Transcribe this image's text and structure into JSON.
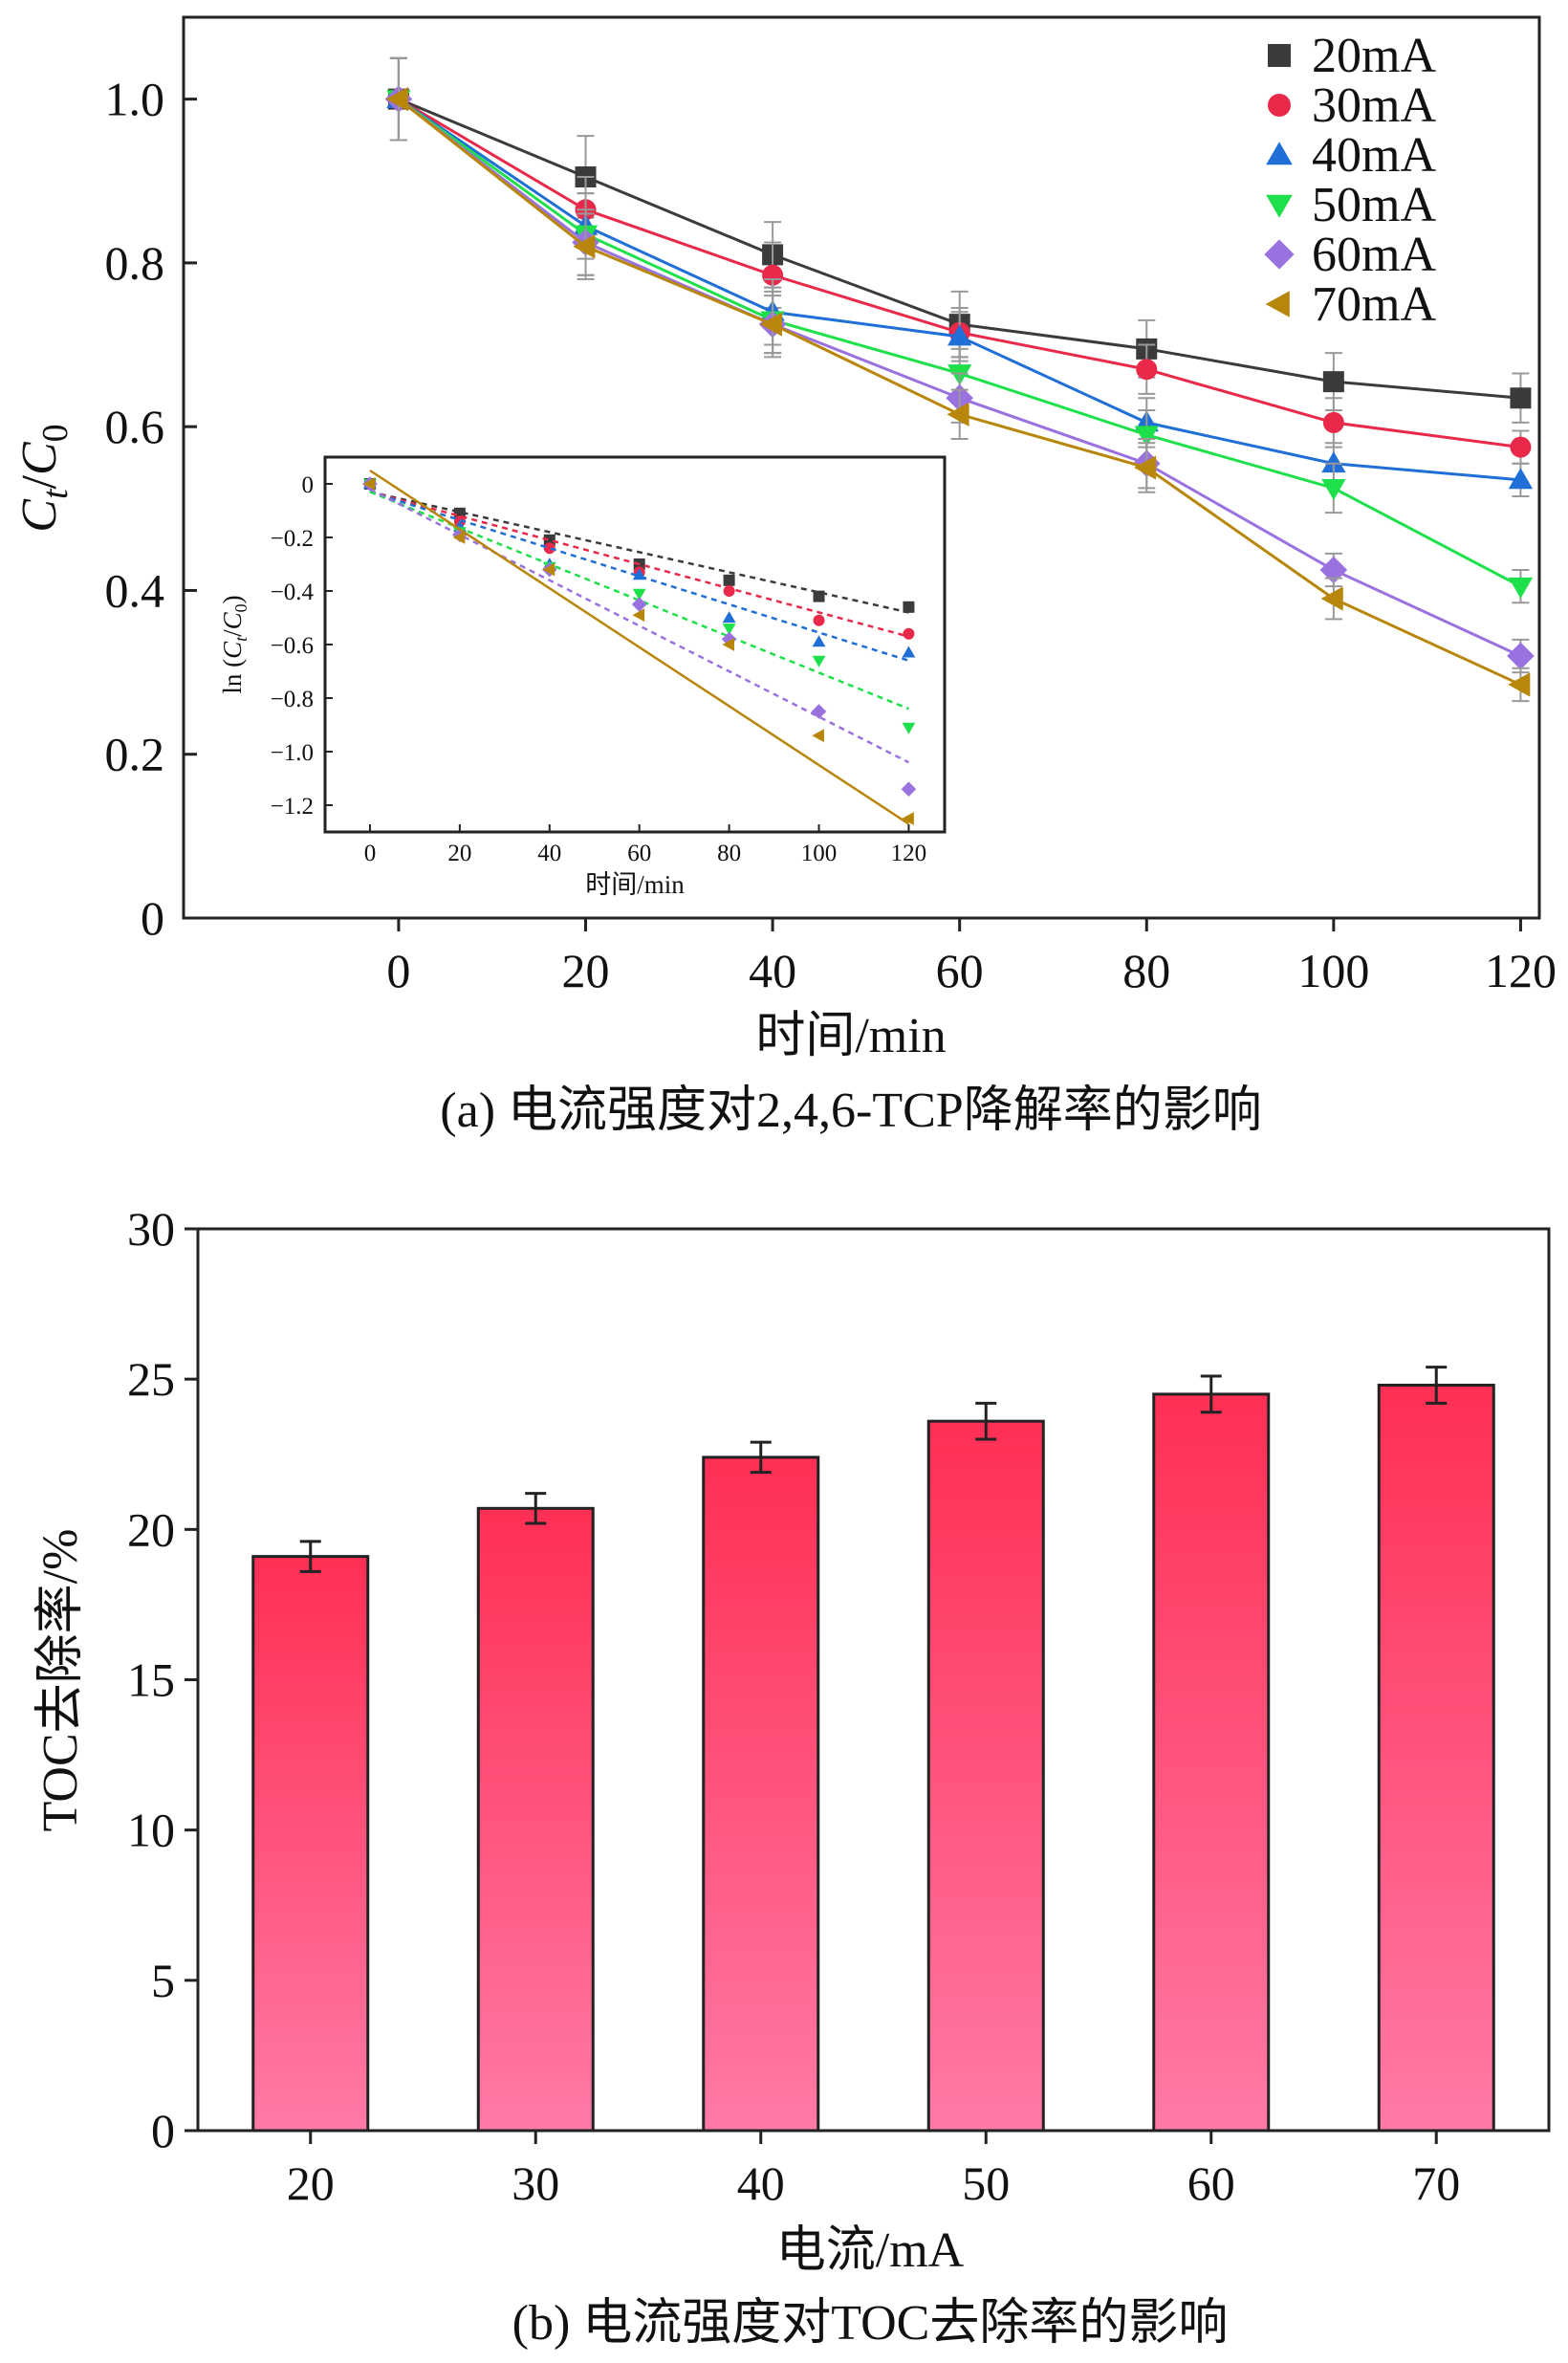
{
  "chart_data": [
    {
      "id": "a",
      "type": "line",
      "caption": "(a) 电流强度对2,4,6-TCP降解率的影响",
      "xlabel": "时间/min",
      "ylabel_main": "C",
      "ylabel_sub1": "t",
      "ylabel_slash": "/",
      "ylabel_sub2": "0",
      "xlim": [
        -23,
        122
      ],
      "ylim": [
        0,
        1.1
      ],
      "x_ticks": [
        0,
        20,
        40,
        60,
        80,
        100,
        120
      ],
      "x_tick_labels": [
        "0",
        "20",
        "40",
        "60",
        "80",
        "100",
        "120"
      ],
      "y_ticks": [
        0,
        0.2,
        0.4,
        0.6,
        0.8,
        1.0
      ],
      "y_tick_labels": [
        "0",
        "0.2",
        "0.4",
        "0.6",
        "0.8",
        "1.0"
      ],
      "x": [
        0,
        20,
        40,
        60,
        80,
        100,
        120
      ],
      "series": [
        {
          "name": "20mA",
          "color": "#3b3b3b",
          "marker": "square",
          "values": [
            1.0,
            0.905,
            0.81,
            0.725,
            0.695,
            0.655,
            0.635
          ],
          "errors": [
            0.05,
            0.05,
            0.04,
            0.04,
            0.035,
            0.035,
            0.03
          ]
        },
        {
          "name": "30mA",
          "color": "#e8294a",
          "marker": "circle",
          "values": [
            1.0,
            0.865,
            0.785,
            0.715,
            0.67,
            0.605,
            0.575
          ],
          "errors": [
            0.05,
            0.04,
            0.04,
            0.03,
            0.03,
            0.03,
            0.02
          ]
        },
        {
          "name": "40mA",
          "color": "#1f6fd6",
          "marker": "triangle-up",
          "values": [
            1.0,
            0.845,
            0.74,
            0.71,
            0.605,
            0.555,
            0.535
          ],
          "errors": [
            0.05,
            0.04,
            0.04,
            0.03,
            0.03,
            0.025,
            0.02
          ]
        },
        {
          "name": "50mA",
          "color": "#1ee04a",
          "marker": "triangle-down",
          "values": [
            1.0,
            0.835,
            0.73,
            0.665,
            0.59,
            0.525,
            0.405
          ],
          "errors": [
            0.05,
            0.05,
            0.04,
            0.03,
            0.03,
            0.03,
            0.02
          ]
        },
        {
          "name": "60mA",
          "color": "#9a72e0",
          "marker": "diamond",
          "values": [
            1.0,
            0.825,
            0.725,
            0.635,
            0.555,
            0.425,
            0.32
          ],
          "errors": [
            0.05,
            0.04,
            0.04,
            0.03,
            0.03,
            0.02,
            0.02
          ]
        },
        {
          "name": "70mA",
          "color": "#b8860b",
          "marker": "triangle-left",
          "values": [
            1.0,
            0.82,
            0.725,
            0.615,
            0.55,
            0.39,
            0.285
          ],
          "errors": [
            0.05,
            0.04,
            0.035,
            0.03,
            0.03,
            0.025,
            0.02
          ]
        }
      ],
      "inset": {
        "type": "scatter",
        "xlabel": "时间/min",
        "ylabel": "ln (C/C)",
        "ylabel_prefix": "ln (",
        "ylabel_c1": "C",
        "ylabel_s1": "t",
        "ylabel_slash": "/",
        "ylabel_c2": "C",
        "ylabel_s2": "0",
        "ylabel_suffix": ")",
        "xlim": [
          -10,
          128
        ],
        "ylim": [
          -1.3,
          0.1
        ],
        "x_ticks": [
          0,
          20,
          40,
          60,
          80,
          100,
          120
        ],
        "x_tick_labels": [
          "0",
          "20",
          "40",
          "60",
          "80",
          "100",
          "120"
        ],
        "y_ticks": [
          0,
          -0.2,
          -0.4,
          -0.6,
          -0.8,
          -1.0,
          -1.2
        ],
        "y_tick_labels": [
          "0",
          "−0.2",
          "−0.4",
          "−0.6",
          "−0.8",
          "−1.0",
          "−1.2"
        ],
        "x": [
          0,
          20,
          40,
          60,
          80,
          100,
          120
        ],
        "series": [
          {
            "name": "20mA",
            "values": [
              0,
              -0.11,
              -0.21,
              -0.3,
              -0.36,
              -0.42,
              -0.46
            ],
            "fit": [
              -0.03,
              -0.48
            ]
          },
          {
            "name": "30mA",
            "values": [
              0,
              -0.14,
              -0.24,
              -0.33,
              -0.4,
              -0.51,
              -0.56
            ],
            "fit": [
              -0.03,
              -0.57
            ]
          },
          {
            "name": "40mA",
            "values": [
              0,
              -0.16,
              -0.3,
              -0.34,
              -0.5,
              -0.59,
              -0.63
            ],
            "fit": [
              -0.03,
              -0.66
            ]
          },
          {
            "name": "50mA",
            "values": [
              0,
              -0.18,
              -0.31,
              -0.41,
              -0.54,
              -0.66,
              -0.91
            ],
            "fit": [
              -0.03,
              -0.84
            ]
          },
          {
            "name": "60mA",
            "values": [
              0,
              -0.19,
              -0.32,
              -0.45,
              -0.58,
              -0.85,
              -1.14
            ],
            "fit": [
              -0.02,
              -1.04
            ]
          },
          {
            "name": "70mA",
            "values": [
              0,
              -0.2,
              -0.32,
              -0.49,
              -0.6,
              -0.94,
              -1.25
            ],
            "fit": [
              0.05,
              -1.27
            ]
          }
        ]
      }
    },
    {
      "id": "b",
      "type": "bar",
      "caption": "(b) 电流强度对TOC去除率的影响",
      "xlabel": "电流/mA",
      "ylabel": "TOC去除率/%",
      "ylim": [
        0,
        30
      ],
      "y_ticks": [
        0,
        5,
        10,
        15,
        20,
        25,
        30
      ],
      "y_tick_labels": [
        "0",
        "5",
        "10",
        "15",
        "20",
        "25",
        "30"
      ],
      "categories": [
        "20",
        "30",
        "40",
        "50",
        "60",
        "70"
      ],
      "values": [
        19.1,
        20.7,
        22.4,
        23.6,
        24.5,
        24.8
      ],
      "errors": [
        0.5,
        0.5,
        0.5,
        0.6,
        0.6,
        0.6
      ],
      "color_top": "#ff2f55",
      "color_bottom": "#ff7aa6"
    }
  ]
}
